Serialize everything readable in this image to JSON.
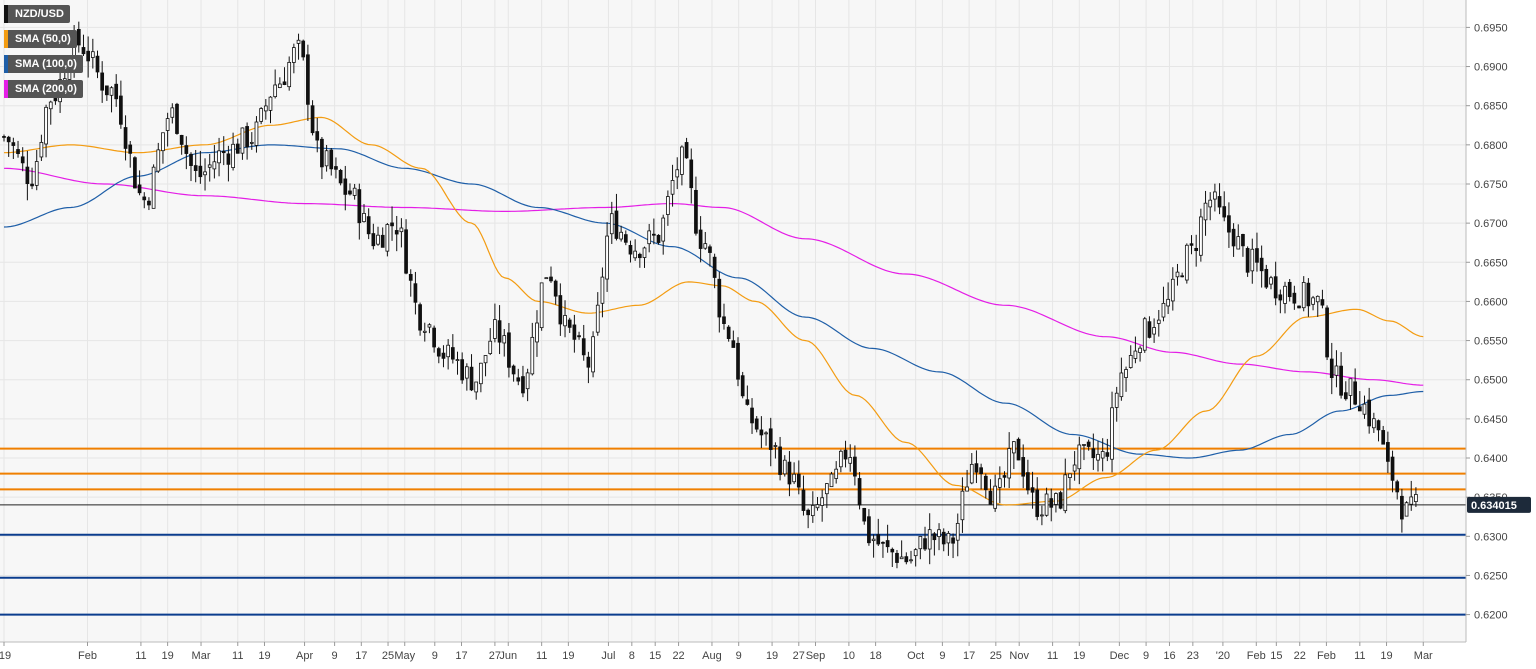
{
  "chart_data": {
    "type": "candlestick",
    "symbol": "NZD/USD",
    "legend": [
      {
        "label": "NZD/USD",
        "color": "#111111"
      },
      {
        "label": "SMA (50,0)",
        "color": "#f39c12"
      },
      {
        "label": "SMA (100,0)",
        "color": "#1f5fa8"
      },
      {
        "label": "SMA (200,0)",
        "color": "#e41ee6"
      }
    ],
    "last_price": "0.634015",
    "ylim": [
      0.6165,
      0.6985
    ],
    "y_ticks": [
      "0.6200",
      "0.6250",
      "0.6300",
      "0.6350",
      "0.6400",
      "0.6450",
      "0.6500",
      "0.6550",
      "0.6600",
      "0.6650",
      "0.6700",
      "0.6750",
      "0.6800",
      "0.6850",
      "0.6900",
      "0.6950"
    ],
    "x_ticks": [
      "'19",
      "Feb",
      "11",
      "19",
      "Mar",
      "11",
      "19",
      "Apr",
      "9",
      "17",
      "25",
      "May",
      "9",
      "17",
      "27",
      "Jun",
      "11",
      "19",
      "Jul",
      "8",
      "15",
      "22",
      "Aug",
      "9",
      "19",
      "27",
      "Sep",
      "10",
      "18",
      "Oct",
      "9",
      "17",
      "25",
      "Nov",
      "11",
      "19",
      "Dec",
      "9",
      "16",
      "23",
      "'20",
      "Feb",
      "15",
      "22",
      "Feb",
      "11",
      "19",
      "Mar"
    ],
    "x_tick_days": [
      0,
      25,
      41,
      49,
      59,
      70,
      78,
      90,
      99,
      107,
      115,
      120,
      129,
      137,
      147,
      151,
      161,
      169,
      181,
      188,
      195,
      202,
      212,
      220,
      230,
      238,
      243,
      253,
      261,
      273,
      281,
      289,
      297,
      304,
      314,
      322,
      334,
      342,
      349,
      356,
      365,
      375,
      381,
      388,
      396,
      406,
      414,
      425
    ],
    "support_resistance_levels": [
      {
        "value": 0.6412,
        "color": "#f07f00"
      },
      {
        "value": 0.638,
        "color": "#f07f00"
      },
      {
        "value": 0.636,
        "color": "#f07f00"
      },
      {
        "value": 0.6302,
        "color": "#0b3d8e"
      },
      {
        "value": 0.6247,
        "color": "#0b3d8e"
      },
      {
        "value": 0.62,
        "color": "#0b3d8e"
      }
    ],
    "price_anchors": [
      [
        0,
        0.681
      ],
      [
        8,
        0.676
      ],
      [
        14,
        0.686
      ],
      [
        22,
        0.693
      ],
      [
        32,
        0.687
      ],
      [
        42,
        0.673
      ],
      [
        50,
        0.684
      ],
      [
        58,
        0.676
      ],
      [
        66,
        0.679
      ],
      [
        74,
        0.681
      ],
      [
        82,
        0.688
      ],
      [
        88,
        0.692
      ],
      [
        95,
        0.678
      ],
      [
        103,
        0.674
      ],
      [
        111,
        0.668
      ],
      [
        117,
        0.67
      ],
      [
        125,
        0.658
      ],
      [
        133,
        0.653
      ],
      [
        141,
        0.65
      ],
      [
        147,
        0.656
      ],
      [
        155,
        0.65
      ],
      [
        163,
        0.664
      ],
      [
        169,
        0.656
      ],
      [
        175,
        0.652
      ],
      [
        182,
        0.67
      ],
      [
        189,
        0.667
      ],
      [
        195,
        0.668
      ],
      [
        203,
        0.678
      ],
      [
        209,
        0.668
      ],
      [
        217,
        0.656
      ],
      [
        223,
        0.645
      ],
      [
        229,
        0.642
      ],
      [
        235,
        0.638
      ],
      [
        241,
        0.632
      ],
      [
        247,
        0.636
      ],
      [
        253,
        0.641
      ],
      [
        259,
        0.63
      ],
      [
        265,
        0.628
      ],
      [
        271,
        0.627
      ],
      [
        277,
        0.63
      ],
      [
        283,
        0.629
      ],
      [
        291,
        0.64
      ],
      [
        297,
        0.635
      ],
      [
        303,
        0.641
      ],
      [
        309,
        0.634
      ],
      [
        315,
        0.634
      ],
      [
        321,
        0.64
      ],
      [
        329,
        0.64
      ],
      [
        335,
        0.651
      ],
      [
        341,
        0.656
      ],
      [
        347,
        0.659
      ],
      [
        355,
        0.666
      ],
      [
        361,
        0.673
      ],
      [
        367,
        0.669
      ],
      [
        373,
        0.665
      ],
      [
        381,
        0.662
      ],
      [
        387,
        0.661
      ],
      [
        393,
        0.66
      ],
      [
        399,
        0.65
      ],
      [
        405,
        0.648
      ],
      [
        411,
        0.644
      ],
      [
        415,
        0.638
      ],
      [
        420,
        0.633
      ],
      [
        424,
        0.634
      ]
    ],
    "sma_50_anchors": [
      [
        0,
        0.679
      ],
      [
        20,
        0.68
      ],
      [
        40,
        0.679
      ],
      [
        60,
        0.68
      ],
      [
        80,
        0.6825
      ],
      [
        95,
        0.6835
      ],
      [
        110,
        0.68
      ],
      [
        125,
        0.677
      ],
      [
        140,
        0.67
      ],
      [
        150,
        0.663
      ],
      [
        160,
        0.66
      ],
      [
        175,
        0.6585
      ],
      [
        190,
        0.6595
      ],
      [
        205,
        0.6625
      ],
      [
        215,
        0.662
      ],
      [
        225,
        0.66
      ],
      [
        240,
        0.655
      ],
      [
        255,
        0.648
      ],
      [
        270,
        0.642
      ],
      [
        285,
        0.6365
      ],
      [
        300,
        0.634
      ],
      [
        315,
        0.6345
      ],
      [
        330,
        0.6375
      ],
      [
        345,
        0.641
      ],
      [
        360,
        0.646
      ],
      [
        375,
        0.653
      ],
      [
        390,
        0.658
      ],
      [
        405,
        0.659
      ],
      [
        415,
        0.6575
      ],
      [
        425,
        0.6555
      ]
    ],
    "sma_100_anchors": [
      [
        0,
        0.6695
      ],
      [
        20,
        0.672
      ],
      [
        40,
        0.676
      ],
      [
        60,
        0.679
      ],
      [
        80,
        0.68
      ],
      [
        100,
        0.6795
      ],
      [
        120,
        0.677
      ],
      [
        140,
        0.675
      ],
      [
        160,
        0.672
      ],
      [
        180,
        0.67
      ],
      [
        200,
        0.667
      ],
      [
        220,
        0.663
      ],
      [
        240,
        0.658
      ],
      [
        260,
        0.654
      ],
      [
        280,
        0.651
      ],
      [
        300,
        0.647
      ],
      [
        320,
        0.643
      ],
      [
        340,
        0.6405
      ],
      [
        355,
        0.64
      ],
      [
        370,
        0.641
      ],
      [
        385,
        0.643
      ],
      [
        400,
        0.646
      ],
      [
        415,
        0.648
      ],
      [
        425,
        0.6485
      ]
    ],
    "sma_200_anchors": [
      [
        0,
        0.677
      ],
      [
        30,
        0.675
      ],
      [
        60,
        0.6735
      ],
      [
        90,
        0.6725
      ],
      [
        120,
        0.672
      ],
      [
        150,
        0.6715
      ],
      [
        180,
        0.672
      ],
      [
        200,
        0.6725
      ],
      [
        215,
        0.672
      ],
      [
        240,
        0.668
      ],
      [
        270,
        0.6635
      ],
      [
        300,
        0.6595
      ],
      [
        330,
        0.6555
      ],
      [
        350,
        0.6535
      ],
      [
        370,
        0.652
      ],
      [
        390,
        0.651
      ],
      [
        410,
        0.65
      ],
      [
        425,
        0.6493
      ]
    ],
    "grid": true,
    "legend_position": "top-left"
  }
}
